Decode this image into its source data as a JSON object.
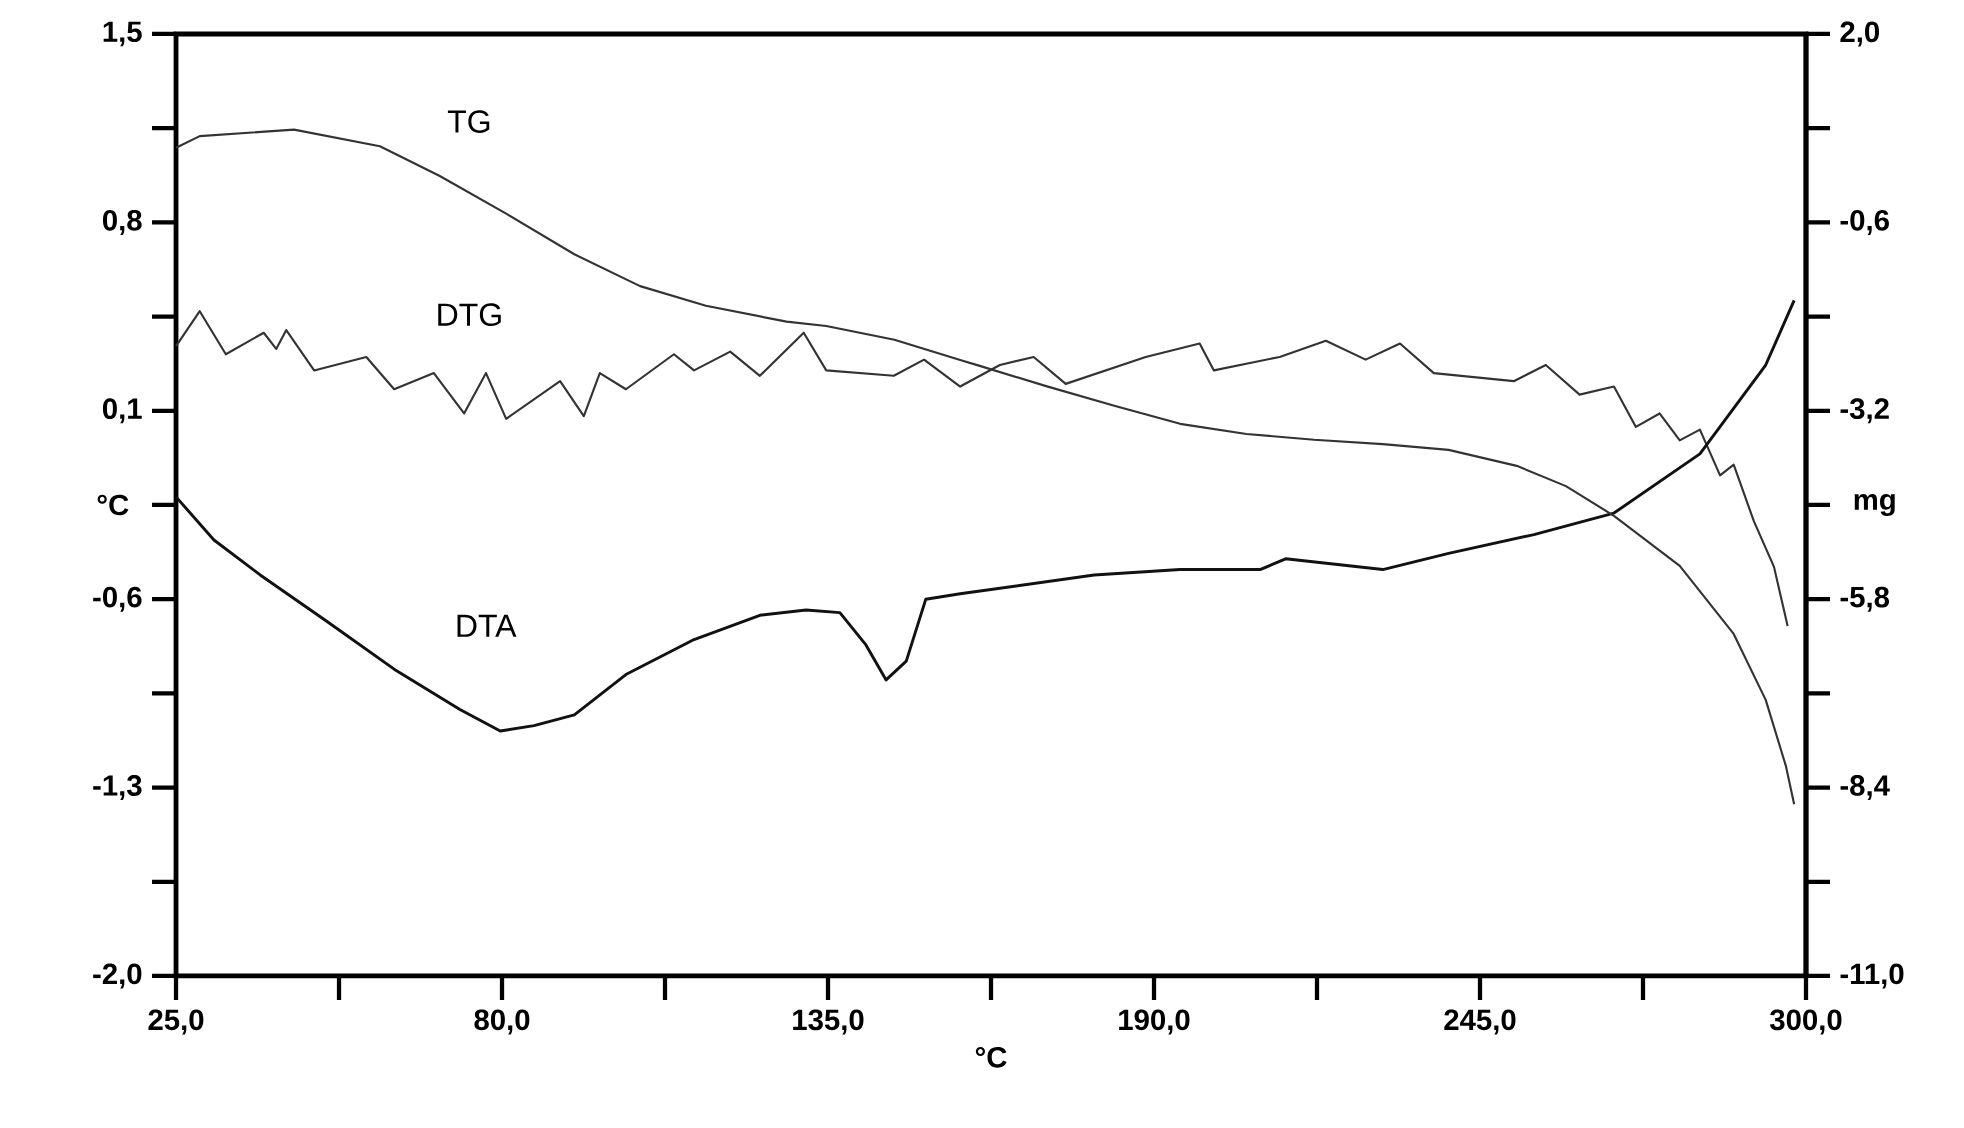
{
  "chart_data": {
    "type": "line",
    "xlabel": "°C",
    "ylabel": "°C",
    "y2label": "mg",
    "xlim": [
      25,
      300
    ],
    "ylim": [
      -2.0,
      1.5
    ],
    "y2lim": [
      -11.0,
      2.0
    ],
    "xticks": [
      {
        "value": 25,
        "label": "25,0"
      },
      {
        "value": 52.5,
        "label": null
      },
      {
        "value": 80,
        "label": "80,0"
      },
      {
        "value": 107.5,
        "label": null
      },
      {
        "value": 135,
        "label": "135,0"
      },
      {
        "value": 162.5,
        "label": null
      },
      {
        "value": 190,
        "label": "190,0"
      },
      {
        "value": 217.5,
        "label": null
      },
      {
        "value": 245,
        "label": "245,0"
      },
      {
        "value": 272.5,
        "label": null
      },
      {
        "value": 300,
        "label": "300,0"
      }
    ],
    "yticks": [
      {
        "value": -2.0,
        "label": "-2,0"
      },
      {
        "value": -1.65,
        "label": null
      },
      {
        "value": -1.3,
        "label": "-1,3"
      },
      {
        "value": -0.95,
        "label": null
      },
      {
        "value": -0.6,
        "label": "-0,6"
      },
      {
        "value": -0.25,
        "label": null
      },
      {
        "value": 0.1,
        "label": "0,1"
      },
      {
        "value": 0.45,
        "label": null
      },
      {
        "value": 0.8,
        "label": "0,8"
      },
      {
        "value": 1.15,
        "label": null
      },
      {
        "value": 1.5,
        "label": "1,5"
      }
    ],
    "y2ticks": [
      {
        "value": -11.0,
        "label": "-11,0"
      },
      {
        "value": -9.7,
        "label": null
      },
      {
        "value": -8.4,
        "label": "-8,4"
      },
      {
        "value": -7.1,
        "label": null
      },
      {
        "value": -5.8,
        "label": "-5,8"
      },
      {
        "value": -4.5,
        "label": null
      },
      {
        "value": -3.2,
        "label": "-3,2"
      },
      {
        "value": -1.9,
        "label": null
      },
      {
        "value": -0.6,
        "label": "-0,6"
      },
      {
        "value": 0.7,
        "label": null
      },
      {
        "value": 2.0,
        "label": "2,0"
      }
    ],
    "grid": false,
    "series": [
      {
        "name": "TG",
        "color": "#333333",
        "axis": "y2",
        "x": [
          25,
          29.0,
          44.9,
          59.4,
          69.5,
          80.7,
          92.2,
          103.3,
          114.4,
          128.0,
          134.7,
          146.2,
          157.3,
          160.6,
          171.8,
          183.3,
          194.4,
          205.6,
          217.0,
          228.6,
          239.7,
          251.2,
          259.5,
          267.6,
          278.7,
          287.8,
          293.2,
          296.6,
          298.0
        ],
        "values": [
          0.43,
          0.59,
          0.68,
          0.45,
          0.04,
          -0.48,
          -1.04,
          -1.48,
          -1.75,
          -1.97,
          -2.03,
          -2.22,
          -2.5,
          -2.58,
          -2.86,
          -3.13,
          -3.38,
          -3.52,
          -3.6,
          -3.66,
          -3.74,
          -3.96,
          -4.24,
          -4.65,
          -5.34,
          -6.28,
          -7.19,
          -8.1,
          -8.63
        ]
      },
      {
        "name": "DTG",
        "color": "#333333",
        "x": [
          25,
          29.0,
          33.4,
          39.8,
          41.9,
          43.6,
          48.3,
          57.1,
          61.8,
          68.5,
          73.6,
          77.3,
          80.7,
          89.8,
          93.8,
          96.5,
          100.9,
          109.0,
          112.4,
          118.5,
          123.5,
          130.9,
          134.7,
          146.1,
          151.2,
          157.3,
          164.0,
          169.7,
          175.1,
          188.6,
          197.7,
          200.1,
          211.2,
          219.0,
          225.7,
          231.5,
          237.2,
          250.7,
          256.1,
          261.8,
          267.6,
          271.3,
          275.3,
          278.7,
          282.1,
          285.5,
          287.8,
          291.2,
          294.6,
          296.9
        ],
        "values": [
          0.34,
          0.47,
          0.31,
          0.39,
          0.33,
          0.4,
          0.25,
          0.3,
          0.18,
          0.24,
          0.09,
          0.24,
          0.07,
          0.21,
          0.08,
          0.24,
          0.18,
          0.31,
          0.25,
          0.32,
          0.23,
          0.39,
          0.25,
          0.23,
          0.29,
          0.19,
          0.27,
          0.3,
          0.2,
          0.3,
          0.35,
          0.25,
          0.3,
          0.36,
          0.29,
          0.35,
          0.24,
          0.21,
          0.27,
          0.16,
          0.19,
          0.04,
          0.09,
          -0.01,
          0.03,
          -0.14,
          -0.1,
          -0.31,
          -0.48,
          -0.7
        ]
      },
      {
        "name": "DTA",
        "color": "#111111",
        "x": [
          25,
          31.4,
          39.2,
          50.3,
          61.8,
          72.9,
          79.7,
          85.4,
          92.2,
          100.9,
          112.4,
          123.5,
          131.3,
          137.0,
          141.4,
          144.8,
          148.2,
          151.5,
          157.3,
          179.9,
          194.4,
          207.9,
          212.2,
          228.6,
          239.7,
          254.1,
          267.6,
          282.1,
          293.2,
          298.0
        ],
        "values": [
          -0.22,
          -0.38,
          -0.51,
          -0.68,
          -0.86,
          -1.01,
          -1.09,
          -1.07,
          -1.03,
          -0.88,
          -0.75,
          -0.66,
          -0.64,
          -0.65,
          -0.77,
          -0.9,
          -0.83,
          -0.6,
          -0.58,
          -0.51,
          -0.49,
          -0.49,
          -0.45,
          -0.49,
          -0.43,
          -0.36,
          -0.28,
          -0.06,
          0.27,
          0.51
        ]
      }
    ]
  }
}
